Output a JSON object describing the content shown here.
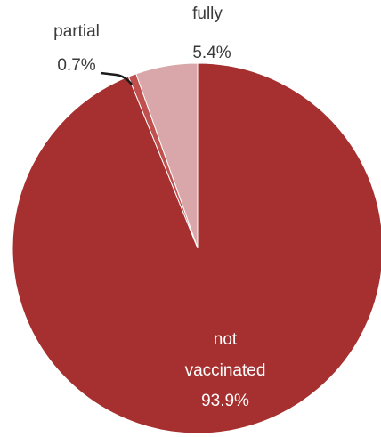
{
  "chart_data": {
    "type": "pie",
    "slices": [
      {
        "name": "fully",
        "value": 5.4,
        "label_pct": "5.4%",
        "color": "#d9a7a9"
      },
      {
        "name": "partial",
        "value": 0.7,
        "label_pct": "0.7%",
        "color": "#c0504d"
      },
      {
        "name": "not vaccinated",
        "value": 93.9,
        "label_pct": "93.9%",
        "color": "#a5302f"
      }
    ],
    "labels": {
      "fully": [
        "fully",
        "5.4%"
      ],
      "partial": [
        "partial",
        "0.7%"
      ],
      "not_vaccinated": [
        "not",
        "vaccinated",
        "93.9%"
      ]
    }
  }
}
